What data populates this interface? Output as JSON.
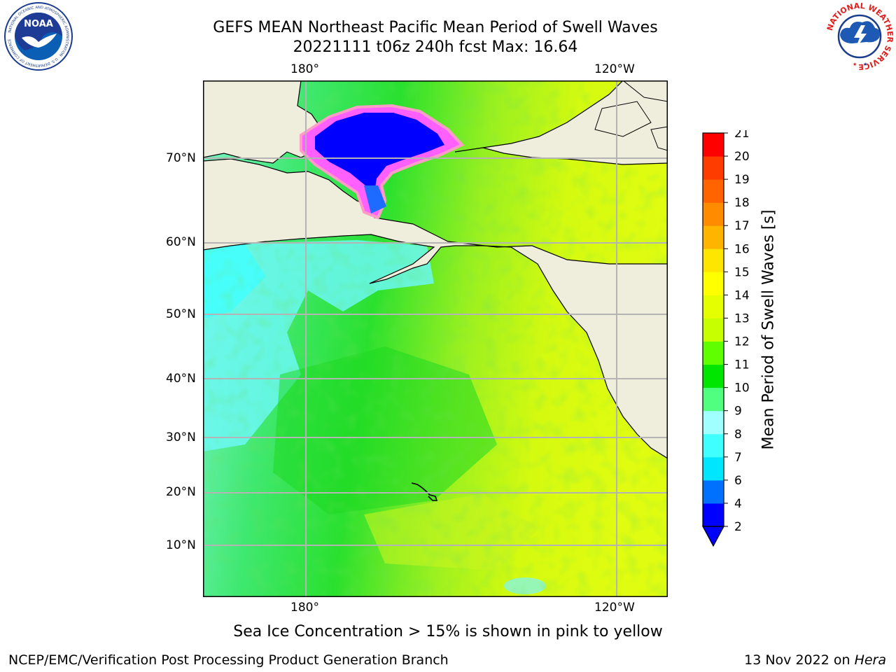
{
  "title_line1": "GEFS MEAN Northeast Pacific Mean Period of Swell Waves",
  "title_line2": "20221111 t06z 240h fcst   Max: 16.64",
  "top_ticks": [
    "180°",
    "120°W"
  ],
  "bottom_ticks": [
    "180°",
    "120°W"
  ],
  "lat_ticks": [
    "70°N",
    "60°N",
    "50°N",
    "40°N",
    "30°N",
    "20°N",
    "10°N"
  ],
  "colorbar": {
    "label": "Mean Period of Swell Waves [s]",
    "ticks": [
      "2",
      "4",
      "6",
      "7",
      "8",
      "9",
      "10",
      "11",
      "12",
      "13",
      "14",
      "15",
      "16",
      "17",
      "18",
      "19",
      "20",
      "21"
    ],
    "colors": [
      "#0000ff",
      "#0070ff",
      "#00e6ff",
      "#40ffff",
      "#a0ffff",
      "#50ff80",
      "#00e600",
      "#60ff00",
      "#c8ff00",
      "#e6ff00",
      "#ffff00",
      "#ffe600",
      "#ffb400",
      "#ff8c00",
      "#ff6400",
      "#ff3c00",
      "#ff0000"
    ]
  },
  "note": "Sea Ice Concentration > 15% is shown in pink to yellow",
  "footer_left": "NCEP/EMC/Verification Post Processing Product Generation Branch",
  "footer_right_date": "13 Nov 2022 on",
  "footer_right_machine": "Hera",
  "logos": {
    "noaa": {
      "text": "NOAA",
      "ring_text": "NATIONAL OCEANIC AND ATMOSPHERIC ADMINISTRATION · U.S. DEPARTMENT OF COMMERCE"
    },
    "nws": {
      "ring_text": "NATIONAL WEATHER SERVICE"
    }
  },
  "colors": {
    "land": "#efeedc",
    "grid": "#b4b4b4",
    "ice_pink": "#ff40ff",
    "ice_blue": "#0000ff"
  }
}
